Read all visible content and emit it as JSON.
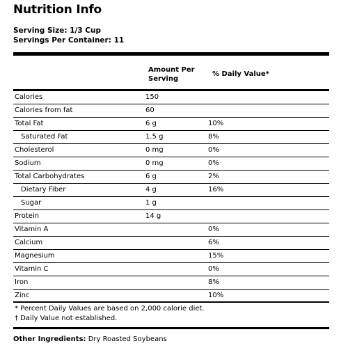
{
  "title": "Nutrition Info",
  "serving": {
    "size": "Serving Size: 1/3 Cup",
    "per_container": "Servings Per Container: 11"
  },
  "columns": {
    "amount": "Amount Per Serving",
    "daily_value": "% Daily Value*"
  },
  "rows": [
    {
      "label": "Calories",
      "amount": "150",
      "dv": "",
      "indent": false
    },
    {
      "label": "Calories from fat",
      "amount": "60",
      "dv": "",
      "indent": false
    },
    {
      "label": "Total Fat",
      "amount": "6 g",
      "dv": "10%",
      "indent": false
    },
    {
      "label": "Saturated Fat",
      "amount": "1.5 g",
      "dv": "8%",
      "indent": true
    },
    {
      "label": "Cholesterol",
      "amount": "0 mg",
      "dv": "0%",
      "indent": false
    },
    {
      "label": "Sodium",
      "amount": "0 mg",
      "dv": "0%",
      "indent": false
    },
    {
      "label": "Total Carbohydrates",
      "amount": "6 g",
      "dv": "2%",
      "indent": false
    },
    {
      "label": "Dietary Fiber",
      "amount": "4 g",
      "dv": "16%",
      "indent": true
    },
    {
      "label": "Sugar",
      "amount": "1 g",
      "dv": "",
      "indent": true
    },
    {
      "label": "Protein",
      "amount": "14 g",
      "dv": "",
      "indent": false
    },
    {
      "label": "Vitamin A",
      "amount": "",
      "dv": "0%",
      "indent": false
    },
    {
      "label": "Calcium",
      "amount": "",
      "dv": "6%",
      "indent": false
    },
    {
      "label": "Magnesium",
      "amount": "",
      "dv": "15%",
      "indent": false
    },
    {
      "label": "Vitamin C",
      "amount": "",
      "dv": "0%",
      "indent": false
    },
    {
      "label": "Iron",
      "amount": "",
      "dv": "8%",
      "indent": false
    },
    {
      "label": "Zinc",
      "amount": "",
      "dv": "10%",
      "indent": false
    }
  ],
  "footnotes": {
    "daily_values": "* Percent Daily Values are based on 2,000 calorie diet.",
    "not_established": "† Daily Value not established."
  },
  "other_ingredients": {
    "label": "Other Ingredients:",
    "value": "Dry Roasted Soybeans"
  }
}
